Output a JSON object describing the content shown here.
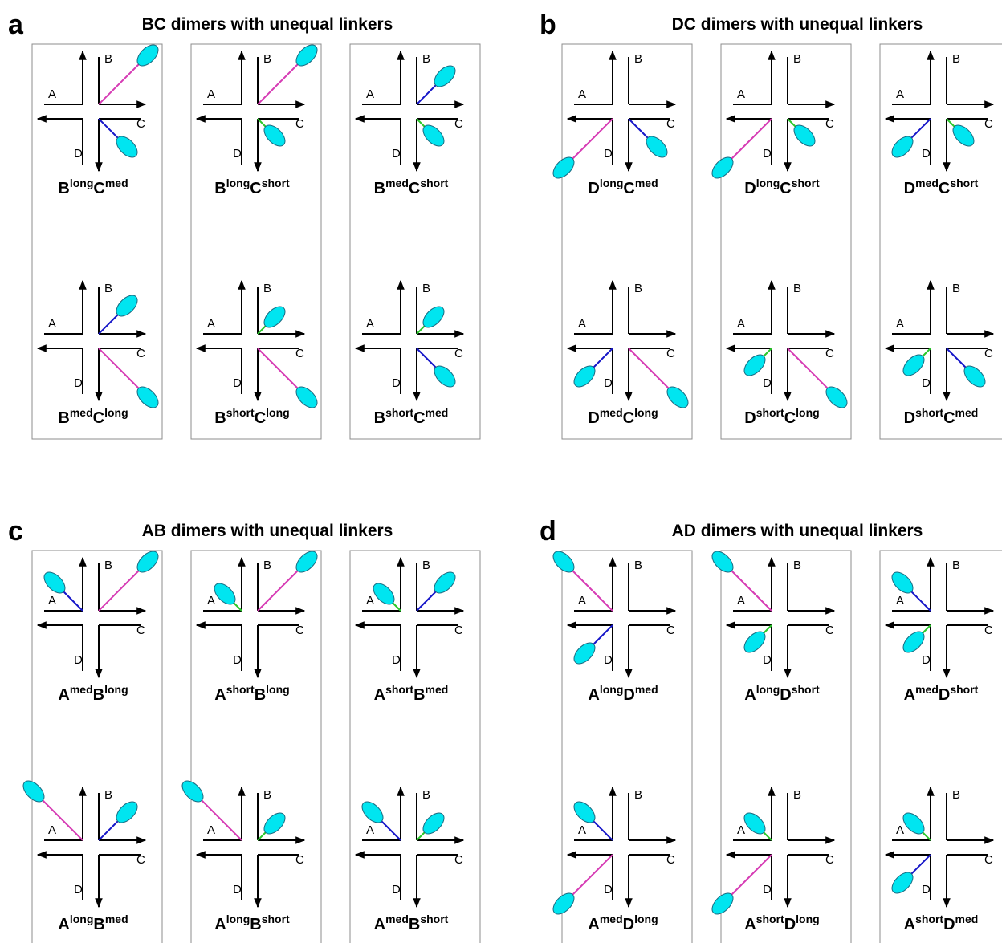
{
  "axes": [
    "A",
    "B",
    "C",
    "D"
  ],
  "panels": [
    {
      "letter": "a",
      "title": "BC dimers with unequal linkers",
      "cells": [
        {
          "label": [
            "B",
            "long",
            "C",
            "med"
          ]
        },
        {
          "label": [
            "B",
            "long",
            "C",
            "short"
          ]
        },
        {
          "label": [
            "B",
            "med",
            "C",
            "short"
          ]
        },
        {
          "label": [
            "B",
            "med",
            "C",
            "long"
          ]
        },
        {
          "label": [
            "B",
            "short",
            "C",
            "long"
          ]
        },
        {
          "label": [
            "B",
            "short",
            "C",
            "med"
          ]
        }
      ]
    },
    {
      "letter": "b",
      "title": "DC dimers with unequal linkers",
      "cells": [
        {
          "label": [
            "D",
            "long",
            "C",
            "med"
          ]
        },
        {
          "label": [
            "D",
            "long",
            "C",
            "short"
          ]
        },
        {
          "label": [
            "D",
            "med",
            "C",
            "short"
          ]
        },
        {
          "label": [
            "D",
            "med",
            "C",
            "long"
          ]
        },
        {
          "label": [
            "D",
            "short",
            "C",
            "long"
          ]
        },
        {
          "label": [
            "D",
            "short",
            "C",
            "med"
          ]
        }
      ]
    },
    {
      "letter": "c",
      "title": "AB dimers with unequal linkers",
      "cells": [
        {
          "label": [
            "A",
            "med",
            "B",
            "long"
          ]
        },
        {
          "label": [
            "A",
            "short",
            "B",
            "long"
          ]
        },
        {
          "label": [
            "A",
            "short",
            "B",
            "med"
          ]
        },
        {
          "label": [
            "A",
            "long",
            "B",
            "med"
          ]
        },
        {
          "label": [
            "A",
            "long",
            "B",
            "short"
          ]
        },
        {
          "label": [
            "A",
            "med",
            "B",
            "short"
          ]
        }
      ]
    },
    {
      "letter": "d",
      "title": "AD dimers with unequal linkers",
      "cells": [
        {
          "label": [
            "A",
            "long",
            "D",
            "med"
          ]
        },
        {
          "label": [
            "A",
            "long",
            "D",
            "short"
          ]
        },
        {
          "label": [
            "A",
            "med",
            "D",
            "short"
          ]
        },
        {
          "label": [
            "A",
            "med",
            "D",
            "long"
          ]
        },
        {
          "label": [
            "A",
            "short",
            "D",
            "long"
          ]
        },
        {
          "label": [
            "A",
            "short",
            "D",
            "med"
          ]
        }
      ]
    }
  ]
}
